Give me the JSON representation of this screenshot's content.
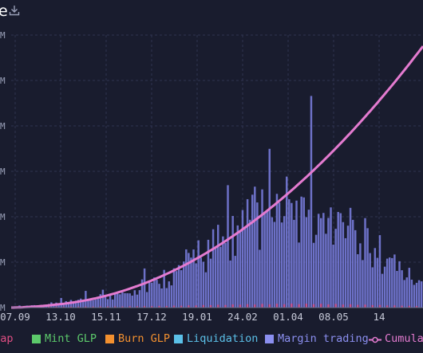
{
  "header": {
    "title_fragment": "e",
    "download_icon": "download-icon"
  },
  "chart_data": {
    "type": "bar",
    "x_tick_labels": [
      "07.09",
      "13.10",
      "15.11",
      "17.12",
      "19.01",
      "24.02",
      "01.04",
      "08.05",
      "14"
    ],
    "y_tick_labels": [
      "M",
      "M",
      "M",
      "M",
      "M",
      "M",
      "M"
    ],
    "legend": [
      {
        "label": "Swap",
        "color": "#e04e84"
      },
      {
        "label": "Mint GLP",
        "color": "#5cc96b"
      },
      {
        "label": "Burn GLP",
        "color": "#f3902f"
      },
      {
        "label": "Liquidation",
        "color": "#5bc0e8"
      },
      {
        "label": "Margin trading",
        "color": "#8b8ff0"
      },
      {
        "label": "Cumula",
        "color": "#e47bd0"
      }
    ],
    "grid": true,
    "bars_note_values_relative": true,
    "margin_trading_values": [
      0.3,
      0.5,
      0.4,
      0.6,
      0.5,
      0.8,
      0.9,
      0.7,
      1.0,
      1.2,
      0.9,
      1.3,
      1.1,
      1.5,
      1.2,
      1.8,
      2.0,
      1.6,
      2.2,
      1.9,
      2.5,
      2.1,
      2.8,
      2.4,
      3.0,
      2.6,
      3.3,
      2.9,
      3.6,
      3.1,
      3.9,
      3.4,
      4.2,
      3.7,
      4.6,
      4.0,
      5.0,
      4.3,
      5.5,
      4.8,
      6.0,
      5.2,
      6.6,
      5.7,
      7.2,
      6.2,
      7.9,
      6.8,
      8.6,
      7.4,
      9.4,
      8.0,
      10.2,
      8.7,
      11.1,
      9.5,
      12.0,
      10.3,
      13.0,
      11.2,
      14.1,
      12.1,
      15.3,
      13.0,
      16.5,
      14.1,
      17.8,
      15.2,
      19.1,
      16.3,
      20.5,
      17.5,
      22.0,
      18.8,
      23.6,
      20.1,
      25.2,
      21.5,
      26.9,
      23.0,
      28.6,
      24.4,
      30.3,
      25.8,
      32.1,
      27.2,
      33.8,
      28.6,
      35.5,
      30.0,
      37.1,
      31.3,
      38.7,
      32.6,
      40.2,
      33.8,
      41.6,
      34.9,
      43.0,
      36.0,
      44.3,
      37.0,
      45.5,
      37.9,
      46.6,
      38.7,
      47.6,
      39.4,
      48.4,
      40.0,
      49.1,
      40.5,
      49.7,
      40.8,
      50.1,
      41.0,
      50.3,
      41.1,
      50.3,
      41.0,
      50.1,
      40.7,
      49.7,
      40.2,
      49.1,
      39.6,
      48.3,
      38.8,
      47.3,
      37.9,
      46.2,
      36.9,
      44.9,
      35.8,
      43.5,
      34.6,
      41.9,
      33.3,
      40.2,
      31.9,
      38.4,
      30.4,
      36.5,
      28.9,
      34.5,
      27.3,
      32.4,
      25.7,
      30.3,
      24.1,
      28.1,
      22.5,
      25.9,
      20.9,
      23.7,
      19.3,
      21.5,
      17.8,
      19.4,
      16.3,
      17.3,
      14.9,
      15.3,
      13.5,
      13.4,
      12.2,
      11.6,
      11.0
    ],
    "cumulative_values": [
      0.0,
      0.2,
      0.5,
      0.9,
      1.4,
      2.0,
      2.7,
      3.4,
      4.1,
      4.9,
      5.7,
      6.6,
      7.5,
      8.5,
      9.6,
      10.8,
      12.1,
      13.5,
      14.9,
      16.3,
      17.7,
      19.1,
      20.6,
      22.1,
      23.7,
      25.4,
      27.2,
      29.1,
      31.1,
      33.2,
      35.4,
      37.7,
      40.1,
      42.6,
      45.2,
      47.9,
      50.7,
      53.6,
      56.6,
      59.7,
      62.9,
      66.2,
      69.6,
      73.1,
      76.7,
      80.4,
      84.2,
      88.1,
      92.1,
      96.2,
      100.4,
      104.7,
      109.1,
      113.6,
      118.2,
      122.9,
      127.7,
      132.6,
      137.6,
      142.7,
      147.9,
      153.2,
      158.6,
      164.1,
      169.7,
      175.4,
      181.2,
      187.1,
      193.1,
      199.2,
      205.4,
      211.7,
      218.1,
      224.6,
      231.2,
      237.9,
      244.7,
      251.6,
      258.6,
      265.7,
      272.9,
      280.2,
      287.6,
      295.1,
      302.7,
      310.4,
      318.2,
      326.1,
      334.1,
      342.2,
      350.4,
      358.7,
      367.1,
      375.6,
      384.2,
      392.9,
      401.7,
      410.6,
      419.6,
      428.7,
      437.9,
      447.2,
      456.6,
      466.1,
      475.7,
      485.4,
      495.2,
      505.1,
      515.1,
      525.2,
      535.4,
      545.7,
      556.1,
      566.6,
      577.2,
      587.9,
      598.7,
      609.6,
      620.6,
      631.7,
      642.9,
      654.2,
      665.6,
      677.1,
      688.7,
      700.4,
      712.2,
      724.1,
      736.1,
      748.2,
      760.4,
      772.7,
      785.1,
      797.6,
      810.2,
      822.9,
      835.7,
      848.6,
      861.6,
      874.7,
      887.9,
      901.2,
      914.6,
      928.1,
      941.7,
      955.4,
      969.2,
      983.1,
      997.1,
      1011.2,
      1025.4,
      1039.7,
      1054.1,
      1068.6,
      1083.2,
      1097.9,
      1112.7,
      1127.6,
      1142.6,
      1157.7,
      1172.9,
      1188.2,
      1203.6,
      1219.1,
      1234.7,
      1250.4,
      1266.2,
      1282.1,
      1298.1,
      1314.2,
      1330.4,
      1346.7,
      1363.1,
      1379.6,
      1396.2,
      1412.9,
      1429.7,
      1446.6,
      1463.6,
      1480.7,
      1497.9
    ]
  }
}
